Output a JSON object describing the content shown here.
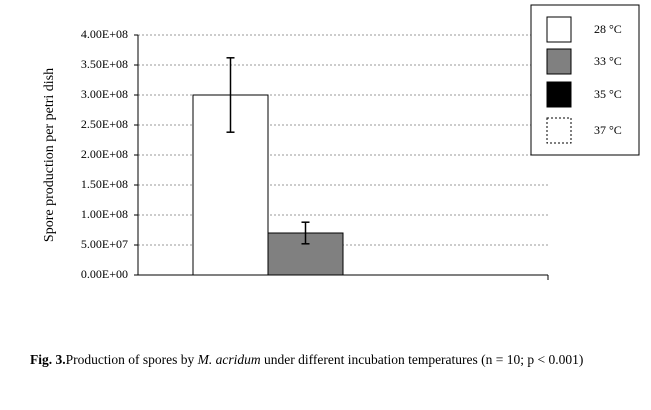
{
  "chart_data": {
    "type": "bar",
    "y_label": "Spore production per petri dish",
    "categories": [
      null
    ],
    "series": [
      {
        "name": "28 °C",
        "color": "#ffffff",
        "values": [
          300000000
        ],
        "errors": [
          62000000
        ]
      },
      {
        "name": "33 °C",
        "color": "#808080",
        "values": [
          70000000
        ],
        "errors": [
          18000000
        ]
      },
      {
        "name": "35 °C",
        "color": "#000000",
        "values": [
          0
        ]
      },
      {
        "name": "37 °C",
        "color": "#ffffff",
        "line_style": "dashed",
        "values": [
          0
        ]
      }
    ],
    "ylim": [
      0,
      400000000
    ],
    "yticks": [
      {
        "value": 0,
        "label": "0.00E+00"
      },
      {
        "value": 50000000,
        "label": "5.00E+07"
      },
      {
        "value": 100000000,
        "label": "1.00E+08"
      },
      {
        "value": 150000000,
        "label": "1.50E+08"
      },
      {
        "value": 200000000,
        "label": "2.00E+08"
      },
      {
        "value": 250000000,
        "label": "2.50E+08"
      },
      {
        "value": 300000000,
        "label": "3.00E+08"
      },
      {
        "value": 350000000,
        "label": "3.50E+08"
      },
      {
        "value": 400000000,
        "label": "4.00E+08"
      }
    ],
    "grid": true,
    "legend": "top-right",
    "caption": [
      "Fig. 3.",
      "Production of spores by ",
      "M. acridum",
      " under different incubation temperatures (n = 10; p < 0.001)"
    ]
  }
}
